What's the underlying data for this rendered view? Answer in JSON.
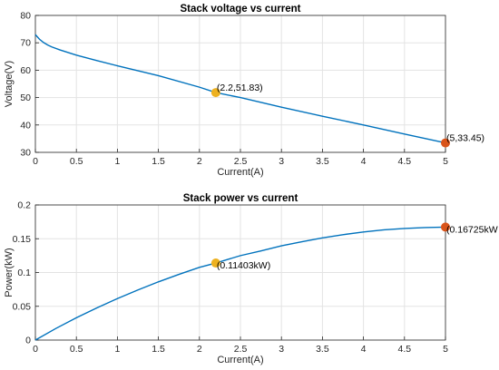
{
  "chart_data": [
    {
      "type": "line",
      "title": "Stack voltage vs current",
      "xlabel": "Current(A)",
      "ylabel": "Voltage(V)",
      "xlim": [
        0,
        5
      ],
      "ylim": [
        30,
        80
      ],
      "xticks": [
        "0",
        "0.5",
        "1",
        "1.5",
        "2",
        "2.5",
        "3",
        "3.5",
        "4",
        "4.5",
        "5"
      ],
      "yticks": [
        "30",
        "40",
        "50",
        "60",
        "70",
        "80"
      ],
      "grid": true,
      "line_color": "#0072BD",
      "series": [
        {
          "x": [
            0,
            0.02,
            0.05,
            0.1,
            0.15,
            0.2,
            0.3,
            0.5,
            0.75,
            1.0,
            1.5,
            2.0,
            2.2,
            2.5,
            3.0,
            3.5,
            4.0,
            4.5,
            5.0
          ],
          "y": [
            73,
            72.3,
            71.3,
            70.1,
            69.2,
            68.5,
            67.4,
            65.5,
            63.5,
            61.6,
            58.0,
            53.8,
            51.83,
            50.0,
            46.5,
            43.2,
            40.0,
            36.7,
            33.45
          ]
        }
      ],
      "points": [
        {
          "x": 2.2,
          "y": 51.83,
          "label": "(2.2,51.83)",
          "color": "#EDB120"
        },
        {
          "x": 5,
          "y": 33.45,
          "label": "(5,33.45)",
          "color": "#D95319"
        }
      ]
    },
    {
      "type": "line",
      "title": "Stack power vs current",
      "xlabel": "Current(A)",
      "ylabel": "Power(kW)",
      "xlim": [
        0,
        5
      ],
      "ylim": [
        0,
        0.2
      ],
      "xticks": [
        "0",
        "0.5",
        "1",
        "1.5",
        "2",
        "2.5",
        "3",
        "3.5",
        "4",
        "4.5",
        "5"
      ],
      "yticks": [
        "0",
        "0.05",
        "0.1",
        "0.15",
        "0.2"
      ],
      "grid": true,
      "line_color": "#0072BD",
      "series": [
        {
          "x": [
            0,
            0.25,
            0.5,
            0.75,
            1.0,
            1.25,
            1.5,
            1.75,
            2.0,
            2.2,
            2.5,
            2.75,
            3.0,
            3.25,
            3.5,
            3.75,
            4.0,
            4.25,
            4.5,
            4.75,
            5.0
          ],
          "y": [
            0,
            0.0172,
            0.033,
            0.0476,
            0.0614,
            0.0742,
            0.0862,
            0.0972,
            0.1076,
            0.11403,
            0.125,
            0.132,
            0.1395,
            0.1455,
            0.1512,
            0.156,
            0.16,
            0.1632,
            0.1652,
            0.1665,
            0.16725
          ]
        }
      ],
      "points": [
        {
          "x": 2.2,
          "y": 0.11403,
          "label": "(0.11403kW)",
          "color": "#EDB120"
        },
        {
          "x": 5,
          "y": 0.16725,
          "label": "(0.16725kW",
          "color": "#D95319"
        }
      ]
    }
  ]
}
